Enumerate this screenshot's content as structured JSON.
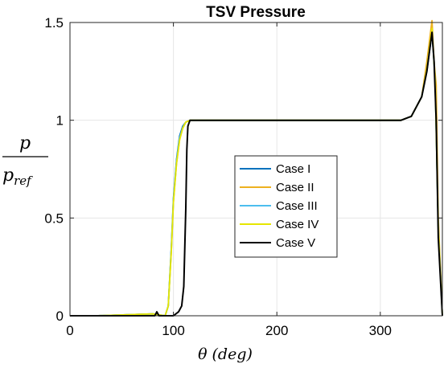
{
  "chart_data": {
    "type": "line",
    "title": "TSV Pressure",
    "xlabel": {
      "symbol": "θ",
      "unit": "(deg)"
    },
    "ylabel": {
      "numerator": "p",
      "denominator_main": "p",
      "denominator_sub": "ref"
    },
    "xlim": [
      0,
      360
    ],
    "ylim": [
      0,
      1.5
    ],
    "xticks": [
      0,
      100,
      200,
      300
    ],
    "xtick_labels": [
      "0",
      "100",
      "200",
      "300"
    ],
    "yticks": [
      0,
      0.5,
      1,
      1.5
    ],
    "ytick_labels": [
      "0",
      "0.5",
      "1",
      "1.5"
    ],
    "grid": true,
    "legend_position": "center",
    "series": [
      {
        "name": "Case I",
        "color": "#0072BD",
        "x": [
          0,
          25,
          80,
          92,
          95,
          98,
          100,
          103,
          106,
          109,
          112,
          116,
          130,
          150,
          200,
          250,
          300,
          320,
          330,
          340,
          345,
          350,
          353,
          356,
          360
        ],
        "y": [
          0,
          0,
          0.01,
          0.0,
          0.05,
          0.35,
          0.6,
          0.8,
          0.92,
          0.97,
          0.99,
          1.0,
          1.0,
          1.0,
          1.0,
          1.0,
          1.0,
          1.0,
          1.02,
          1.12,
          1.25,
          1.45,
          1.22,
          0.45,
          0.0
        ]
      },
      {
        "name": "Case II",
        "color": "#EDB120",
        "x": [
          0,
          25,
          80,
          92,
          95,
          98,
          100,
          103,
          106,
          109,
          112,
          116,
          130,
          150,
          200,
          250,
          300,
          320,
          330,
          340,
          345,
          350,
          352,
          354,
          356,
          360
        ],
        "y": [
          0,
          0,
          0.01,
          0.0,
          0.05,
          0.33,
          0.58,
          0.78,
          0.9,
          0.96,
          0.99,
          1.0,
          1.0,
          1.0,
          1.0,
          1.0,
          1.0,
          1.0,
          1.02,
          1.12,
          1.3,
          1.51,
          1.3,
          1.18,
          0.5,
          0.0
        ]
      },
      {
        "name": "Case III",
        "color": "#4DBEEE",
        "x": [
          0,
          25,
          80,
          92,
          95,
          98,
          100,
          103,
          106,
          109,
          112,
          116,
          130,
          150,
          200,
          250,
          300,
          320,
          330,
          340,
          345,
          350,
          353,
          356,
          360
        ],
        "y": [
          0,
          0,
          0.01,
          0.0,
          0.05,
          0.34,
          0.59,
          0.79,
          0.91,
          0.96,
          0.99,
          1.0,
          1.0,
          1.0,
          1.0,
          1.0,
          1.0,
          1.0,
          1.02,
          1.12,
          1.26,
          1.46,
          1.2,
          0.45,
          0.0
        ]
      },
      {
        "name": "Case IV",
        "color": "#E6E600",
        "x": [
          0,
          25,
          80,
          92,
          95,
          98,
          100,
          103,
          106,
          109,
          112,
          116,
          130,
          150,
          200,
          250,
          300,
          320,
          330,
          340,
          345,
          350,
          353,
          356,
          360
        ],
        "y": [
          0,
          0,
          0.01,
          0.0,
          0.05,
          0.33,
          0.58,
          0.78,
          0.9,
          0.96,
          0.99,
          1.0,
          1.0,
          1.0,
          1.0,
          1.0,
          1.0,
          1.0,
          1.02,
          1.12,
          1.26,
          1.47,
          1.2,
          0.45,
          0.0
        ]
      },
      {
        "name": "Case V",
        "color": "#000000",
        "x": [
          0,
          25,
          82,
          84,
          86,
          100,
          105,
          108,
          110,
          112,
          113,
          114,
          116,
          130,
          150,
          200,
          250,
          300,
          320,
          330,
          340,
          345,
          350,
          352,
          354,
          356,
          360
        ],
        "y": [
          0,
          0,
          0.0,
          0.02,
          0.0,
          0.0,
          0.02,
          0.05,
          0.15,
          0.55,
          0.85,
          0.97,
          1.0,
          1.0,
          1.0,
          1.0,
          1.0,
          1.0,
          1.0,
          1.02,
          1.12,
          1.25,
          1.45,
          1.3,
          1.0,
          0.4,
          0.0
        ]
      }
    ]
  }
}
